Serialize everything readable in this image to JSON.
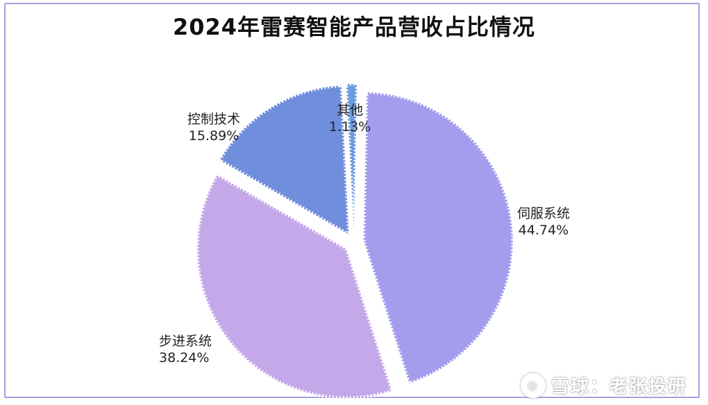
{
  "chart_data": {
    "type": "pie",
    "title": "2024年雷赛智能产品营收占比情况",
    "slices": [
      {
        "name": "伺服系统",
        "value": 44.74,
        "label": "44.74%",
        "color": "#a49ded"
      },
      {
        "name": "步进系统",
        "value": 38.24,
        "label": "38.24%",
        "color": "#c5a8ea"
      },
      {
        "name": "控制技术",
        "value": 15.89,
        "label": "15.89%",
        "color": "#6f8edc"
      },
      {
        "name": "其他",
        "value": 1.13,
        "label": "1.13%",
        "color": "#6b9ae0"
      }
    ],
    "legend": "none"
  },
  "watermark": {
    "icon": "xueqiu-logo-icon",
    "text": "雪球：老张投研"
  }
}
